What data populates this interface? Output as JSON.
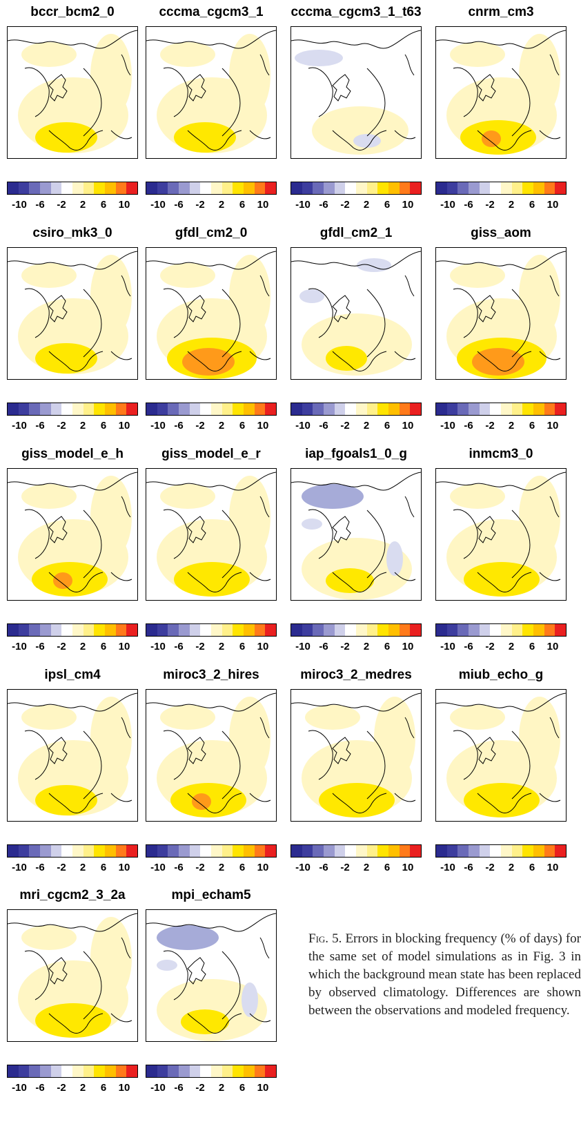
{
  "figure": {
    "colorbar": {
      "tick_labels": [
        "-10",
        "-6",
        "-2",
        "2",
        "6",
        "10"
      ],
      "colors": [
        "#2b2b8f",
        "#3d3d9e",
        "#6a6ab8",
        "#9a9ad0",
        "#cfd0ea",
        "#ffffff",
        "#fff7c8",
        "#fff08a",
        "#ffe400",
        "#ffbf00",
        "#ff7a1a",
        "#ea2020"
      ]
    },
    "anomaly_colors": {
      "light_yellow": "#fff6c4",
      "yellow": "#ffe800",
      "orange": "#ff9a1a",
      "light_blue": "#d9dcf0",
      "blue": "#a6abd8"
    },
    "panels": [
      {
        "title": "bccr_bcm2_0",
        "anomaly": "weak-positive"
      },
      {
        "title": "cccma_cgcm3_1",
        "anomaly": "weak-positive"
      },
      {
        "title": "cccma_cgcm3_1_t63",
        "anomaly": "very-weak"
      },
      {
        "title": "cnrm_cm3",
        "anomaly": "positive-core"
      },
      {
        "title": "csiro_mk3_0",
        "anomaly": "weak-positive"
      },
      {
        "title": "gfdl_cm2_0",
        "anomaly": "strong-positive"
      },
      {
        "title": "gfdl_cm2_1",
        "anomaly": "mixed"
      },
      {
        "title": "giss_aom",
        "anomaly": "strong-positive"
      },
      {
        "title": "giss_model_e_h",
        "anomaly": "positive-core"
      },
      {
        "title": "giss_model_e_r",
        "anomaly": "positive"
      },
      {
        "title": "iap_fgoals1_0_g",
        "anomaly": "mixed-negative"
      },
      {
        "title": "inmcm3_0",
        "anomaly": "positive"
      },
      {
        "title": "ipsl_cm4",
        "anomaly": "weak-positive"
      },
      {
        "title": "miroc3_2_hires",
        "anomaly": "positive-core"
      },
      {
        "title": "miroc3_2_medres",
        "anomaly": "positive"
      },
      {
        "title": "miub_echo_g",
        "anomaly": "positive"
      },
      {
        "title": "mri_cgcm2_3_2a",
        "anomaly": "positive"
      },
      {
        "title": "mpi_echam5",
        "anomaly": "mixed-negative"
      }
    ]
  },
  "caption": {
    "label": "Fig. 5.",
    "text": "Errors in blocking frequency (% of days) for the same set of model simulations as in Fig. 3 in which the background mean state has been replaced by observed climatology. Differences are shown between the observations and modeled frequency."
  }
}
